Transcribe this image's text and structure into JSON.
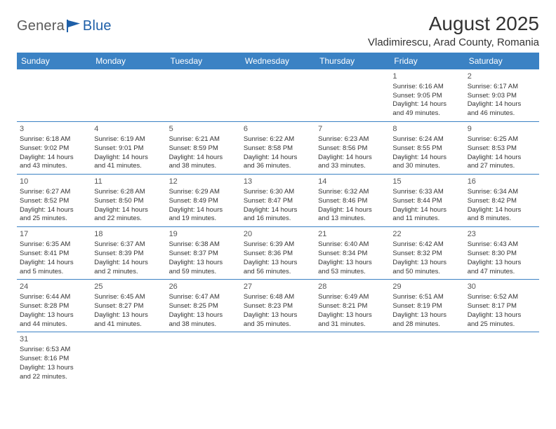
{
  "logo": {
    "text_gray": "Genera",
    "text_blue": "lBlue",
    "gray_color": "#5a5a5a",
    "blue_color": "#1e5fa8"
  },
  "header": {
    "title": "August 2025",
    "location": "Vladimirescu, Arad County, Romania"
  },
  "calendar": {
    "header_bg": "#3b82c4",
    "header_text_color": "#ffffff",
    "border_color": "#3b82c4",
    "text_color": "#333333",
    "day_headers": [
      "Sunday",
      "Monday",
      "Tuesday",
      "Wednesday",
      "Thursday",
      "Friday",
      "Saturday"
    ],
    "weeks": [
      [
        null,
        null,
        null,
        null,
        null,
        {
          "n": "1",
          "sunrise": "Sunrise: 6:16 AM",
          "sunset": "Sunset: 9:05 PM",
          "day1": "Daylight: 14 hours",
          "day2": "and 49 minutes."
        },
        {
          "n": "2",
          "sunrise": "Sunrise: 6:17 AM",
          "sunset": "Sunset: 9:03 PM",
          "day1": "Daylight: 14 hours",
          "day2": "and 46 minutes."
        }
      ],
      [
        {
          "n": "3",
          "sunrise": "Sunrise: 6:18 AM",
          "sunset": "Sunset: 9:02 PM",
          "day1": "Daylight: 14 hours",
          "day2": "and 43 minutes."
        },
        {
          "n": "4",
          "sunrise": "Sunrise: 6:19 AM",
          "sunset": "Sunset: 9:01 PM",
          "day1": "Daylight: 14 hours",
          "day2": "and 41 minutes."
        },
        {
          "n": "5",
          "sunrise": "Sunrise: 6:21 AM",
          "sunset": "Sunset: 8:59 PM",
          "day1": "Daylight: 14 hours",
          "day2": "and 38 minutes."
        },
        {
          "n": "6",
          "sunrise": "Sunrise: 6:22 AM",
          "sunset": "Sunset: 8:58 PM",
          "day1": "Daylight: 14 hours",
          "day2": "and 36 minutes."
        },
        {
          "n": "7",
          "sunrise": "Sunrise: 6:23 AM",
          "sunset": "Sunset: 8:56 PM",
          "day1": "Daylight: 14 hours",
          "day2": "and 33 minutes."
        },
        {
          "n": "8",
          "sunrise": "Sunrise: 6:24 AM",
          "sunset": "Sunset: 8:55 PM",
          "day1": "Daylight: 14 hours",
          "day2": "and 30 minutes."
        },
        {
          "n": "9",
          "sunrise": "Sunrise: 6:25 AM",
          "sunset": "Sunset: 8:53 PM",
          "day1": "Daylight: 14 hours",
          "day2": "and 27 minutes."
        }
      ],
      [
        {
          "n": "10",
          "sunrise": "Sunrise: 6:27 AM",
          "sunset": "Sunset: 8:52 PM",
          "day1": "Daylight: 14 hours",
          "day2": "and 25 minutes."
        },
        {
          "n": "11",
          "sunrise": "Sunrise: 6:28 AM",
          "sunset": "Sunset: 8:50 PM",
          "day1": "Daylight: 14 hours",
          "day2": "and 22 minutes."
        },
        {
          "n": "12",
          "sunrise": "Sunrise: 6:29 AM",
          "sunset": "Sunset: 8:49 PM",
          "day1": "Daylight: 14 hours",
          "day2": "and 19 minutes."
        },
        {
          "n": "13",
          "sunrise": "Sunrise: 6:30 AM",
          "sunset": "Sunset: 8:47 PM",
          "day1": "Daylight: 14 hours",
          "day2": "and 16 minutes."
        },
        {
          "n": "14",
          "sunrise": "Sunrise: 6:32 AM",
          "sunset": "Sunset: 8:46 PM",
          "day1": "Daylight: 14 hours",
          "day2": "and 13 minutes."
        },
        {
          "n": "15",
          "sunrise": "Sunrise: 6:33 AM",
          "sunset": "Sunset: 8:44 PM",
          "day1": "Daylight: 14 hours",
          "day2": "and 11 minutes."
        },
        {
          "n": "16",
          "sunrise": "Sunrise: 6:34 AM",
          "sunset": "Sunset: 8:42 PM",
          "day1": "Daylight: 14 hours",
          "day2": "and 8 minutes."
        }
      ],
      [
        {
          "n": "17",
          "sunrise": "Sunrise: 6:35 AM",
          "sunset": "Sunset: 8:41 PM",
          "day1": "Daylight: 14 hours",
          "day2": "and 5 minutes."
        },
        {
          "n": "18",
          "sunrise": "Sunrise: 6:37 AM",
          "sunset": "Sunset: 8:39 PM",
          "day1": "Daylight: 14 hours",
          "day2": "and 2 minutes."
        },
        {
          "n": "19",
          "sunrise": "Sunrise: 6:38 AM",
          "sunset": "Sunset: 8:37 PM",
          "day1": "Daylight: 13 hours",
          "day2": "and 59 minutes."
        },
        {
          "n": "20",
          "sunrise": "Sunrise: 6:39 AM",
          "sunset": "Sunset: 8:36 PM",
          "day1": "Daylight: 13 hours",
          "day2": "and 56 minutes."
        },
        {
          "n": "21",
          "sunrise": "Sunrise: 6:40 AM",
          "sunset": "Sunset: 8:34 PM",
          "day1": "Daylight: 13 hours",
          "day2": "and 53 minutes."
        },
        {
          "n": "22",
          "sunrise": "Sunrise: 6:42 AM",
          "sunset": "Sunset: 8:32 PM",
          "day1": "Daylight: 13 hours",
          "day2": "and 50 minutes."
        },
        {
          "n": "23",
          "sunrise": "Sunrise: 6:43 AM",
          "sunset": "Sunset: 8:30 PM",
          "day1": "Daylight: 13 hours",
          "day2": "and 47 minutes."
        }
      ],
      [
        {
          "n": "24",
          "sunrise": "Sunrise: 6:44 AM",
          "sunset": "Sunset: 8:28 PM",
          "day1": "Daylight: 13 hours",
          "day2": "and 44 minutes."
        },
        {
          "n": "25",
          "sunrise": "Sunrise: 6:45 AM",
          "sunset": "Sunset: 8:27 PM",
          "day1": "Daylight: 13 hours",
          "day2": "and 41 minutes."
        },
        {
          "n": "26",
          "sunrise": "Sunrise: 6:47 AM",
          "sunset": "Sunset: 8:25 PM",
          "day1": "Daylight: 13 hours",
          "day2": "and 38 minutes."
        },
        {
          "n": "27",
          "sunrise": "Sunrise: 6:48 AM",
          "sunset": "Sunset: 8:23 PM",
          "day1": "Daylight: 13 hours",
          "day2": "and 35 minutes."
        },
        {
          "n": "28",
          "sunrise": "Sunrise: 6:49 AM",
          "sunset": "Sunset: 8:21 PM",
          "day1": "Daylight: 13 hours",
          "day2": "and 31 minutes."
        },
        {
          "n": "29",
          "sunrise": "Sunrise: 6:51 AM",
          "sunset": "Sunset: 8:19 PM",
          "day1": "Daylight: 13 hours",
          "day2": "and 28 minutes."
        },
        {
          "n": "30",
          "sunrise": "Sunrise: 6:52 AM",
          "sunset": "Sunset: 8:17 PM",
          "day1": "Daylight: 13 hours",
          "day2": "and 25 minutes."
        }
      ],
      [
        {
          "n": "31",
          "sunrise": "Sunrise: 6:53 AM",
          "sunset": "Sunset: 8:16 PM",
          "day1": "Daylight: 13 hours",
          "day2": "and 22 minutes."
        },
        null,
        null,
        null,
        null,
        null,
        null
      ]
    ]
  }
}
